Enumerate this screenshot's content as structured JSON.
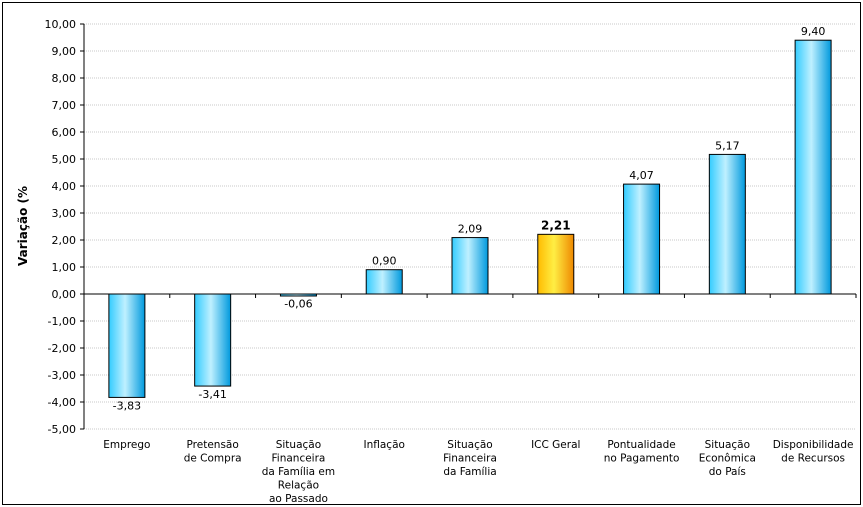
{
  "chart_data": {
    "type": "bar",
    "ylabel": "Variação (%",
    "ylim": [
      -5,
      10
    ],
    "ytick_step": 1,
    "ytick_labels": [
      "-5,00",
      "-4,00",
      "-3,00",
      "-2,00",
      "-1,00",
      "0,00",
      "1,00",
      "2,00",
      "3,00",
      "4,00",
      "5,00",
      "6,00",
      "7,00",
      "8,00",
      "9,00",
      "10,00"
    ],
    "grid": true,
    "categories": [
      [
        "Emprego"
      ],
      [
        "Pretensão",
        "de Compra"
      ],
      [
        "Situação",
        "Financeira",
        "da Família em",
        "Relação",
        "ao Passado"
      ],
      [
        "Inflação"
      ],
      [
        "Situação",
        "Financeira",
        "da Família"
      ],
      [
        "ICC Geral"
      ],
      [
        "Pontualidade",
        "no Pagamento"
      ],
      [
        "Situação",
        "Econômica",
        "do País"
      ],
      [
        "Disponibilidade",
        "de Recursos"
      ]
    ],
    "values": [
      -3.83,
      -3.41,
      -0.06,
      0.9,
      2.09,
      2.21,
      4.07,
      5.17,
      9.4
    ],
    "value_labels": [
      "-3,83",
      "-3,41",
      "-0,06",
      "0,90",
      "2,09",
      "2,21",
      "4,07",
      "5,17",
      "9,40"
    ],
    "highlight_index": 5,
    "colors": {
      "bar_light": "#bff0ff",
      "bar_mid": "#33ccff",
      "bar_dark": "#0099dd",
      "highlight_light": "#ffee44",
      "highlight_mid": "#ffbb00",
      "highlight_dark": "#ee8800",
      "grid": "#c8c8c8",
      "axis": "#000000"
    }
  }
}
